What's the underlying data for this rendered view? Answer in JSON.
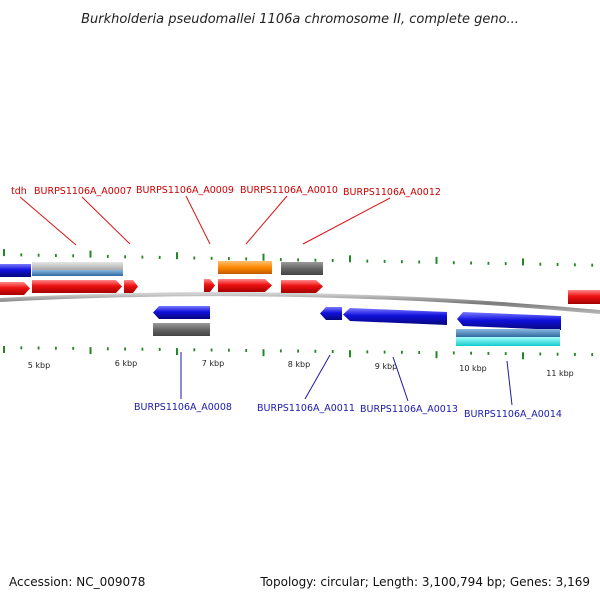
{
  "title": "Burkholderia pseudomallei 1106a chromosome II, complete geno...",
  "footer": {
    "accession": "Accession: NC_009078",
    "summary": "Topology: circular; Length: 3,100,794 bp; Genes: 3,169"
  },
  "colors": {
    "forward_label": "#cc0000",
    "reverse_label": "#1a1aaa",
    "tick": "#228822",
    "backbone": "#888888",
    "gene_red": "#ee1111",
    "gene_blue": "#1111dd",
    "gene_orange": "#ff8800",
    "gene_gray": "#666666",
    "gene_cyan": "#22dddd",
    "gene_steel": "#3a7ab8"
  },
  "kbp_labels": [
    "5 kbp",
    "6 kbp",
    "7 kbp",
    "8 kbp",
    "9 kbp",
    "10 kbp",
    "11 kbp"
  ],
  "forward_gene_labels": [
    "tdh",
    "BURPS1106A_A0007",
    "BURPS1106A_A0009",
    "BURPS1106A_A0010",
    "BURPS1106A_A0012"
  ],
  "reverse_gene_labels": [
    "BURPS1106A_A0008",
    "BURPS1106A_A0011",
    "BURPS1106A_A0013",
    "BURPS1106A_A0014"
  ]
}
